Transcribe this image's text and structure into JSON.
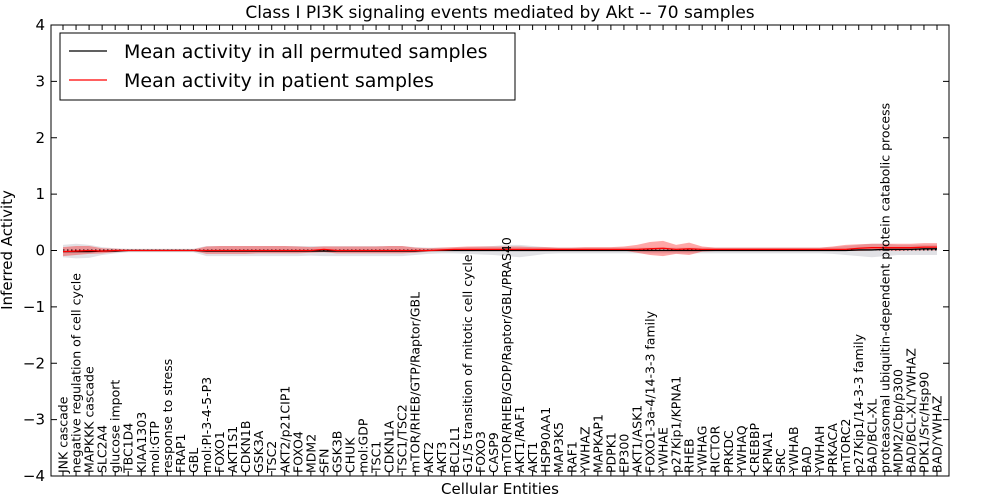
{
  "chart_data": {
    "type": "line",
    "title": "Class I PI3K signaling events mediated by Akt -- 70 samples",
    "xlabel": "Cellular Entities",
    "ylabel": "Inferred Activity",
    "ylim": [
      -4,
      4
    ],
    "yticks": [
      -4,
      -3,
      -2,
      -1,
      0,
      1,
      2,
      3,
      4
    ],
    "ytick_labels": [
      "−4",
      "−3",
      "−2",
      "−1",
      "0",
      "1",
      "2",
      "3",
      "4"
    ],
    "legend_position": "top-left",
    "categories": [
      "JNK cascade",
      "negative regulation of cell cycle",
      "MAPKKK cascade",
      "SLC2A4",
      "glucose import",
      "TBC1D4",
      "KIAA1303",
      "mol:GTP",
      "response to stress",
      "FRAP1",
      "GBL",
      "mol:PI-3-4-5-P3",
      "FOXO1",
      "AKT1S1",
      "CDKN1B",
      "GSK3A",
      "TSC2",
      "AKT2/p21CIP1",
      "FOXO4",
      "MDM2",
      "SFN",
      "GSK3B",
      "CHUK",
      "mol:GDP",
      "TSC1",
      "CDKN1A",
      "TSC1/TSC2",
      "mTOR/RHEB/GTP/Raptor/GBL",
      "AKT2",
      "AKT3",
      "BCL2L1",
      "G1/S transition of mitotic cell cycle",
      "FOXO3",
      "CASP9",
      "mTOR/RHEB/GDP/Raptor/GBL/PRAS40",
      "AKT1/RAF1",
      "AKT1",
      "HSP90AA1",
      "MAP3K5",
      "RAF1",
      "YWHAZ",
      "MAPKAP1",
      "PDPK1",
      "EP300",
      "AKT1/ASK1",
      "FOXO1-3a-4/14-3-3 family",
      "YWHAE",
      "p27Kip1/KPNA1",
      "RHEB",
      "YWHAG",
      "RICTOR",
      "PRKDC",
      "YWHAQ",
      "CREBBP",
      "KPNA1",
      "SRC",
      "YWHAB",
      "BAD",
      "YWHAH",
      "PRKACA",
      "mTORC2",
      "p27Kip1/14-3-3 family",
      "BAD/BCL-XL",
      "proteasomal ubiquitin-dependent protein catabolic process",
      "MDM2/Cbp/p300",
      "BAD/BCL-XL/YWHAZ",
      "PDK1/Src/Hsp90",
      "BAD/YWHAZ"
    ],
    "series": [
      {
        "name": "Mean activity in all permuted samples",
        "color": "#000000",
        "values": [
          -0.02,
          -0.02,
          -0.02,
          -0.01,
          -0.01,
          0.0,
          0.0,
          0.0,
          0.0,
          0.0,
          0.0,
          -0.01,
          -0.01,
          -0.01,
          -0.01,
          -0.01,
          -0.01,
          -0.01,
          -0.01,
          -0.01,
          -0.01,
          -0.01,
          -0.01,
          -0.01,
          -0.01,
          -0.01,
          -0.01,
          -0.01,
          0.0,
          0.0,
          0.0,
          0.0,
          0.0,
          0.0,
          0.0,
          0.0,
          0.0,
          0.0,
          0.0,
          0.0,
          0.0,
          0.0,
          0.0,
          0.0,
          0.0,
          0.0,
          0.0,
          0.0,
          0.0,
          0.0,
          0.0,
          0.0,
          0.0,
          0.0,
          0.0,
          0.0,
          0.0,
          0.0,
          0.0,
          0.0,
          0.0,
          0.01,
          0.01,
          0.02,
          0.02,
          0.02,
          0.03,
          0.03
        ],
        "band_lower": [
          -0.12,
          -0.14,
          -0.13,
          -0.08,
          -0.05,
          -0.03,
          -0.03,
          -0.03,
          -0.03,
          -0.03,
          -0.03,
          -0.1,
          -0.1,
          -0.1,
          -0.1,
          -0.1,
          -0.1,
          -0.1,
          -0.1,
          -0.09,
          -0.1,
          -0.1,
          -0.1,
          -0.1,
          -0.1,
          -0.1,
          -0.1,
          -0.08,
          -0.06,
          -0.05,
          -0.05,
          -0.06,
          -0.07,
          -0.08,
          -0.1,
          -0.12,
          -0.09,
          -0.06,
          -0.05,
          -0.05,
          -0.05,
          -0.05,
          -0.05,
          -0.05,
          -0.05,
          -0.05,
          -0.05,
          -0.05,
          -0.05,
          -0.05,
          -0.05,
          -0.05,
          -0.05,
          -0.05,
          -0.05,
          -0.05,
          -0.05,
          -0.05,
          -0.05,
          -0.06,
          -0.08,
          -0.1,
          -0.12,
          -0.1,
          -0.08,
          -0.08,
          -0.08,
          -0.08
        ],
        "band_upper": [
          0.1,
          0.12,
          0.1,
          0.06,
          0.04,
          0.03,
          0.03,
          0.03,
          0.03,
          0.03,
          0.03,
          0.08,
          0.08,
          0.08,
          0.08,
          0.08,
          0.08,
          0.08,
          0.08,
          0.08,
          0.08,
          0.08,
          0.08,
          0.08,
          0.08,
          0.08,
          0.08,
          0.06,
          0.05,
          0.05,
          0.05,
          0.06,
          0.07,
          0.08,
          0.1,
          0.1,
          0.08,
          0.06,
          0.05,
          0.05,
          0.05,
          0.05,
          0.05,
          0.05,
          0.05,
          0.05,
          0.05,
          0.05,
          0.05,
          0.05,
          0.05,
          0.05,
          0.05,
          0.05,
          0.05,
          0.05,
          0.05,
          0.05,
          0.05,
          0.06,
          0.08,
          0.1,
          0.12,
          0.12,
          0.1,
          0.1,
          0.1,
          0.1
        ]
      },
      {
        "name": "Mean activity in patient samples",
        "color": "#ff0000",
        "values": [
          -0.02,
          -0.01,
          0.0,
          -0.01,
          0.0,
          0.0,
          0.0,
          0.0,
          0.0,
          0.0,
          0.0,
          0.0,
          0.0,
          0.0,
          0.0,
          0.0,
          0.0,
          0.0,
          0.0,
          0.0,
          0.02,
          0.0,
          0.0,
          0.0,
          0.0,
          0.0,
          0.0,
          0.0,
          0.0,
          0.01,
          0.02,
          0.02,
          0.02,
          0.02,
          0.02,
          0.02,
          0.02,
          0.02,
          0.02,
          0.02,
          0.02,
          0.02,
          0.02,
          0.02,
          0.02,
          0.03,
          0.04,
          0.02,
          0.03,
          0.02,
          0.02,
          0.02,
          0.02,
          0.02,
          0.02,
          0.02,
          0.02,
          0.02,
          0.02,
          0.02,
          0.02,
          0.04,
          0.05,
          0.05,
          0.05,
          0.05,
          0.06,
          0.06
        ],
        "band_lower": [
          -0.1,
          -0.08,
          -0.06,
          -0.05,
          -0.03,
          -0.01,
          -0.01,
          -0.01,
          -0.01,
          -0.01,
          -0.01,
          -0.06,
          -0.06,
          -0.06,
          -0.06,
          -0.05,
          -0.05,
          -0.05,
          -0.05,
          -0.04,
          -0.03,
          -0.05,
          -0.05,
          -0.05,
          -0.05,
          -0.05,
          -0.05,
          -0.04,
          -0.02,
          -0.01,
          0.0,
          -0.01,
          -0.01,
          -0.01,
          -0.01,
          -0.01,
          0.0,
          0.0,
          0.0,
          0.0,
          0.0,
          0.0,
          0.0,
          0.0,
          -0.04,
          -0.08,
          -0.1,
          -0.06,
          -0.08,
          -0.02,
          -0.01,
          0.0,
          0.0,
          0.0,
          0.0,
          0.0,
          0.0,
          0.0,
          0.0,
          0.0,
          -0.01,
          -0.01,
          0.0,
          0.0,
          -0.01,
          0.0,
          0.0,
          0.0
        ],
        "band_upper": [
          0.06,
          0.08,
          0.08,
          0.04,
          0.03,
          0.02,
          0.02,
          0.02,
          0.02,
          0.02,
          0.02,
          0.07,
          0.08,
          0.08,
          0.08,
          0.08,
          0.08,
          0.08,
          0.07,
          0.06,
          0.07,
          0.07,
          0.07,
          0.07,
          0.07,
          0.08,
          0.08,
          0.05,
          0.04,
          0.05,
          0.06,
          0.07,
          0.07,
          0.07,
          0.07,
          0.07,
          0.06,
          0.06,
          0.05,
          0.05,
          0.06,
          0.06,
          0.06,
          0.07,
          0.1,
          0.15,
          0.17,
          0.1,
          0.14,
          0.07,
          0.05,
          0.05,
          0.05,
          0.05,
          0.05,
          0.05,
          0.05,
          0.05,
          0.05,
          0.07,
          0.1,
          0.11,
          0.12,
          0.12,
          0.12,
          0.12,
          0.13,
          0.13
        ]
      }
    ]
  }
}
